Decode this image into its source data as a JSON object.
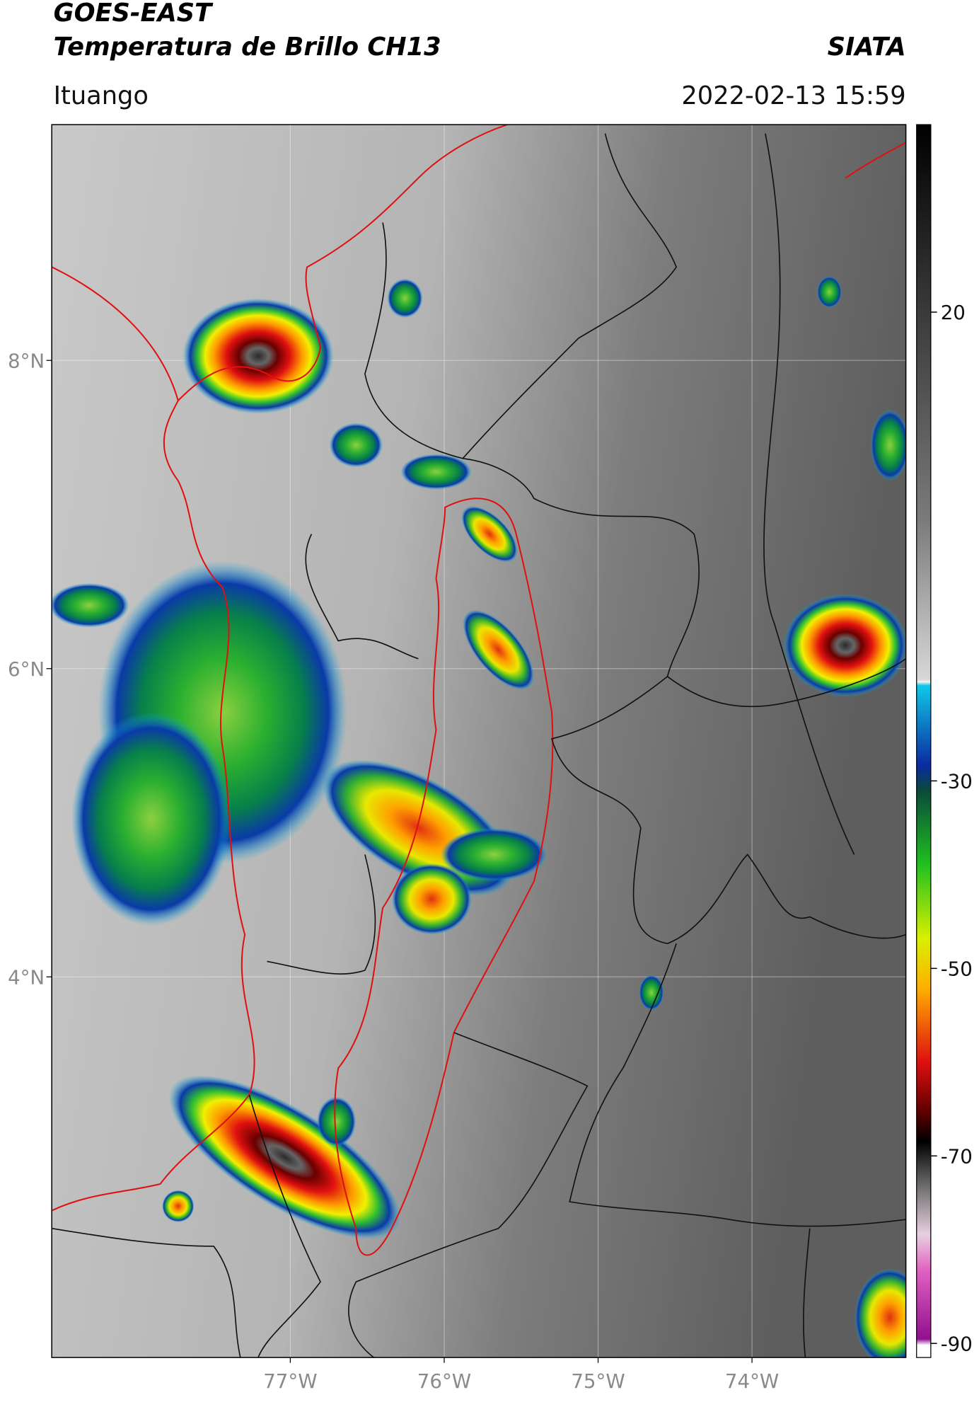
{
  "header": {
    "title": "GOES-EAST",
    "subtitle": "Temperatura de Brillo CH13",
    "brand": "SIATA",
    "location": "Ituango",
    "timestamp": "2022-02-13 15:59"
  },
  "map": {
    "xlim": [
      -78.55,
      -73.0
    ],
    "ylim": [
      1.53,
      9.53
    ],
    "xticks": [
      {
        "value": -77,
        "label": "77°W"
      },
      {
        "value": -76,
        "label": "76°W"
      },
      {
        "value": -75,
        "label": "75°W"
      },
      {
        "value": -74,
        "label": "74°W"
      }
    ],
    "yticks": [
      {
        "value": 8,
        "label": "8°N"
      },
      {
        "value": 6,
        "label": "6°N"
      },
      {
        "value": 4,
        "label": "4°N"
      }
    ]
  },
  "colorbar": {
    "lim": [
      -91.5,
      40
    ],
    "ticks": [
      20,
      -30,
      -50,
      -70,
      -90
    ]
  }
}
